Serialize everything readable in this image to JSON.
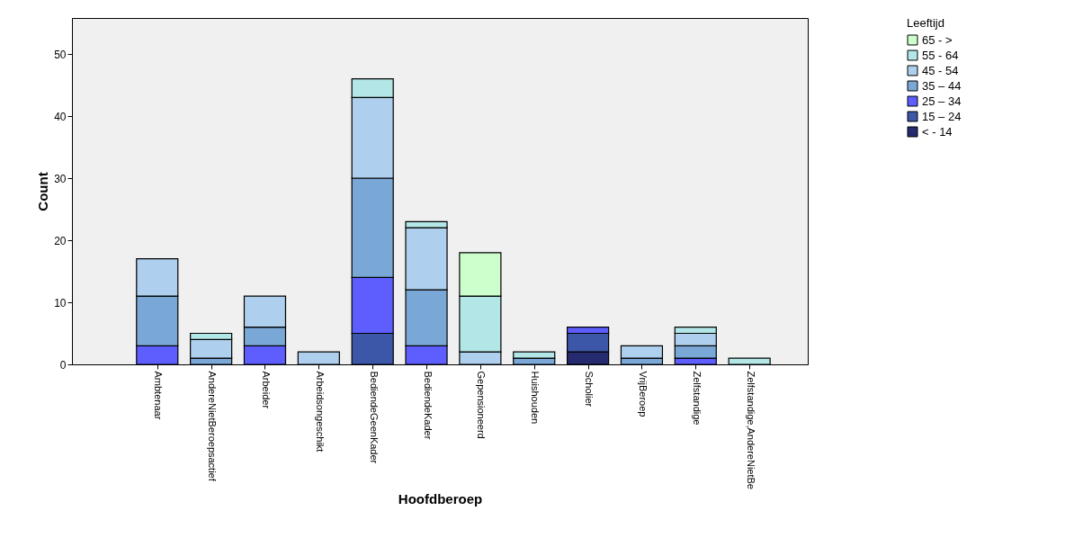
{
  "chart_data": {
    "type": "bar",
    "stacked": true,
    "xlabel": "Hoofdberoep",
    "ylabel": "Count",
    "legend_title": "Leeftijd",
    "legend": "top right",
    "grid": false,
    "categories": [
      "Ambtenaar",
      "AndereNietBeroepsactief",
      "Arbeider",
      "Arbeidsongeschikt",
      "BediendeGeenKader",
      "BediendeKader",
      "Gepensioneerd",
      "Huishouden",
      "Scholier",
      "VrijBeroep",
      "Zelfstandige",
      "Zelfstandige,AndereNietBe"
    ],
    "ylim": [
      0,
      55.8
    ],
    "yticks": [
      0,
      10,
      20,
      30,
      40,
      50
    ],
    "series": [
      {
        "name": "< - 14",
        "color": "#262a6e",
        "values": [
          null,
          null,
          null,
          null,
          null,
          null,
          null,
          null,
          2,
          null,
          null,
          null
        ]
      },
      {
        "name": "15 – 24",
        "color": "#3d57a8",
        "values": [
          null,
          null,
          null,
          null,
          5,
          null,
          null,
          null,
          3,
          null,
          null,
          null
        ]
      },
      {
        "name": "25 – 34",
        "color": "#5e5eff",
        "values": [
          3,
          null,
          3,
          null,
          9,
          3,
          null,
          null,
          1,
          null,
          1,
          null
        ]
      },
      {
        "name": "35 – 44",
        "color": "#7aa8d6",
        "values": [
          8,
          1,
          3,
          null,
          16,
          9,
          null,
          1,
          null,
          1,
          2,
          null
        ]
      },
      {
        "name": "45 - 54",
        "color": "#aecfed",
        "values": [
          6,
          3,
          5,
          2,
          13,
          10,
          2,
          null,
          null,
          2,
          2,
          null
        ]
      },
      {
        "name": "55 - 64",
        "color": "#b3e6e6",
        "values": [
          null,
          1,
          null,
          null,
          3,
          1,
          9,
          1,
          null,
          null,
          1,
          1
        ]
      },
      {
        "name": "65 - >",
        "color": "#ccffcc",
        "values": [
          null,
          null,
          null,
          null,
          null,
          null,
          7,
          null,
          null,
          null,
          null,
          null
        ]
      }
    ]
  }
}
